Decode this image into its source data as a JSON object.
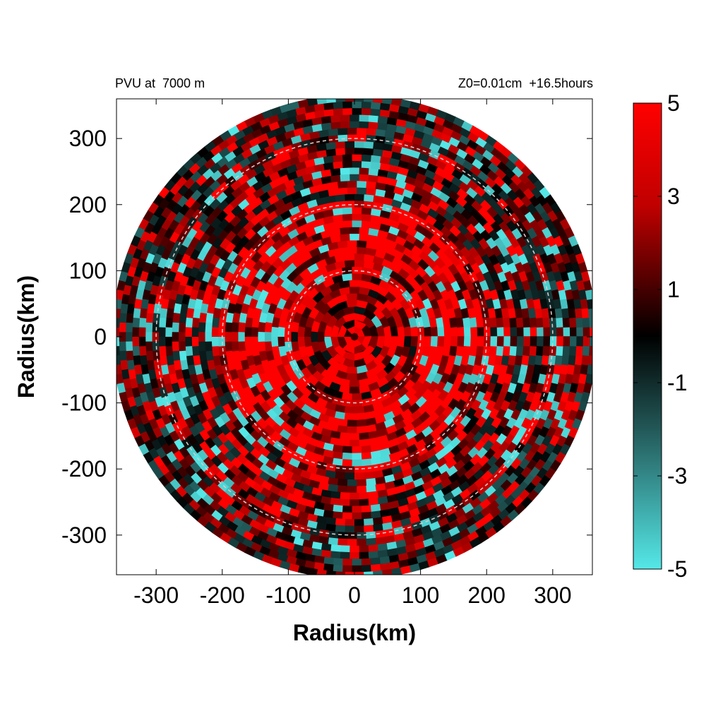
{
  "chart_data": {
    "type": "heatmap",
    "title_left": "PVU at  7000 m",
    "title_right": "Z0=0.01cm  +16.5hours",
    "xlabel": "Radius(km)",
    "ylabel": "Radius(km)",
    "xlim": [
      -360,
      360
    ],
    "ylim": [
      -360,
      360
    ],
    "x_ticks": [
      "-300",
      "-200",
      "-100",
      "0",
      "100",
      "200",
      "300"
    ],
    "y_ticks": [
      "300",
      "200",
      "100",
      "0",
      "-100",
      "-200",
      "-300"
    ],
    "x_tick_values": [
      -300,
      -200,
      -100,
      0,
      100,
      200,
      300
    ],
    "y_tick_values": [
      300,
      200,
      100,
      0,
      -100,
      -200,
      -300
    ],
    "domain_radius_km": 360,
    "range_rings_km": [
      100,
      200,
      300
    ],
    "colorbar": {
      "min": -5,
      "max": 5,
      "tick_labels": [
        "5",
        "3",
        "1",
        "-1",
        "-3",
        "-5"
      ],
      "tick_values": [
        5,
        3,
        1,
        -1,
        -3,
        -5
      ],
      "colors": {
        "high": "#ff0000",
        "mid": "#000000",
        "low": "#55e8e8"
      }
    },
    "field_description_rings": [
      {
        "r_inner": 0,
        "r_outer": 90,
        "mean_value": 2.5
      },
      {
        "r_inner": 90,
        "r_outer": 200,
        "mean_value": 3.5
      },
      {
        "r_inner": 200,
        "r_outer": 300,
        "mean_value": 1.5
      },
      {
        "r_inner": 300,
        "r_outer": 360,
        "mean_value": 0.8
      }
    ],
    "grid": false
  }
}
